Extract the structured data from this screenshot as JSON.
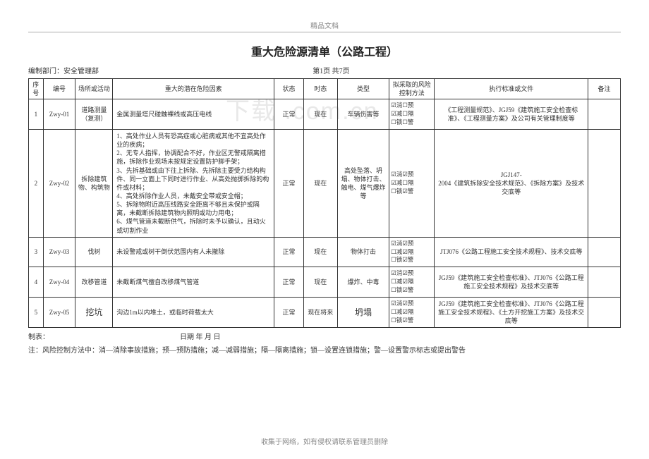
{
  "header": {
    "topLabel": "精品文档",
    "title": "重大危险源清单（公路工程）",
    "deptLabel": "编制部门：安全管理部",
    "pageLabel": "第1页 共7页"
  },
  "table": {
    "headers": {
      "seq": "序号",
      "code": "编号",
      "place": "场所或活动",
      "factor": "重大的潜在危险因素",
      "state": "状态",
      "tense": "时态",
      "type": "类型",
      "ctrl": "拟采取的风险控制方法",
      "std": "执行标准或文件",
      "note": "备注"
    },
    "rows": [
      {
        "seq": "1",
        "code": "Zwy-01",
        "place": "道路测量（复测）",
        "factor": "金属测量塔尺碰触裸线或高压电线",
        "state": "正常",
        "tense": "现在",
        "type": "车辆伤害等",
        "ctrl": {
          "xiao": true,
          "yu": false,
          "jian": true,
          "ge": false,
          "suo": false,
          "jing": false
        },
        "std": "《工程测量规范》、JGJ59《建筑施工安全检查标准》、《工程测量方案》及公司有关管理制度等"
      },
      {
        "seq": "2",
        "code": "Zwy-02",
        "place": "拆除建筑物、构筑物",
        "factor": "1、高处作业人员有恐高症或心脏病或其他不宜高处作业的疾病；\n2、无专人指挥，协调配合不好，作业区无警戒隔离措施，拆除作业现场未按规定设置防护脚手架；\n3、先拆基础或由下往上拆除、先拆除主要受力结构构件、同一立面上下同时进行作业、从高处抛掷拆除的构件或材料；\n4、高处拆除作业人员，未戴安全带或安全帽；\n5、拆除物附近高压线路安全距离不够且未保护或隔离，未截断拆除建筑物内照明或动力用电；\n6、煤气管道未截断供气，拆除时未予以确认，且动火或切割作业",
        "state": "正常",
        "tense": "现在",
        "type": "高处坠落、坍塌、物体打击、触电、煤气爆炸等",
        "ctrl": {
          "xiao": true,
          "yu": true,
          "jian": true,
          "ge": false,
          "suo": false,
          "jing": true
        },
        "std": "JGJ147-\n2004《建筑拆除安全技术规范》、《拆除方案》及技术交底等"
      },
      {
        "seq": "3",
        "code": "Zwy-03",
        "place": "伐树",
        "factor": "未设警戒或树干倒伏范围内有人未撤除",
        "state": "正常",
        "tense": "现在",
        "type": "物体打击",
        "ctrl": {
          "xiao": true,
          "yu": true,
          "jian": false,
          "ge": true,
          "suo": false,
          "jing": true
        },
        "std": "JTJ076《公路工程施工安全技术规程》、技术交底等"
      },
      {
        "seq": "4",
        "code": "Zwy-04",
        "place": "改移管道",
        "factor": "未截断煤气擅自改移煤气管道",
        "state": "正常",
        "tense": "现在",
        "type": "爆炸、中毒",
        "ctrl": {
          "xiao": true,
          "yu": true,
          "jian": false,
          "ge": true,
          "suo": false,
          "jing": true
        },
        "std": "JGJ59《建筑施工安全检查标准》、JTJ076《公路工程施工安全技术规程》及技术交底等"
      },
      {
        "seq": "5",
        "code": "Zwy-05",
        "place": "挖坑",
        "factor": "沟边1m以内堆土，或临时荷载太大",
        "state": "正常",
        "tense": "现在将来",
        "type": "坍塌",
        "ctrl": {
          "xiao": true,
          "yu": true,
          "jian": false,
          "ge": true,
          "suo": false,
          "jing": true
        },
        "std": "JGJ59《建筑施工安全检查标准》、JTJ076《公路工程施工安全技术规程》、《土方开挖施工方案》及技术交底等"
      }
    ]
  },
  "below": {
    "maker": "制表：",
    "date": "日期  年  月  日",
    "note": "注：风险控制方法中：消—消除事故措施；预—预防措施；减—减弱措施；隔—隔离措施；锁—设置连锁措施；警—设置警示标志或提出警告"
  },
  "footer": "收集于网络，如有侵权请联系管理员删除",
  "watermark": "下载 .com.cn",
  "ctrlLabels": {
    "xiao": "消",
    "yu": "预",
    "jian": "减",
    "ge": "隔",
    "suo": "锁",
    "jing": "警"
  },
  "checkbox": {
    "on": "☑",
    "off": "☐"
  }
}
